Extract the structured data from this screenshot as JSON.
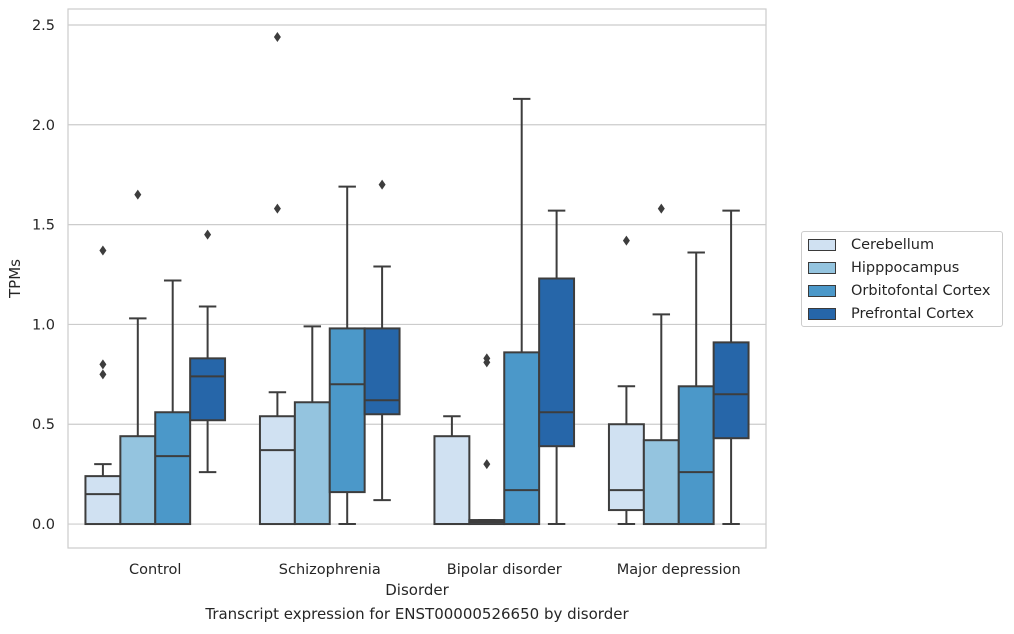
{
  "caption": "Transcript expression for ENST00000526650 by disorder",
  "chart_data": {
    "type": "box",
    "title": "",
    "xlabel": "Disorder",
    "ylabel": "TPMs",
    "ylim": [
      -0.12,
      2.58
    ],
    "yticks": [
      0.0,
      0.5,
      1.0,
      1.5,
      2.0,
      2.5
    ],
    "ytick_labels": [
      "0.0",
      "0.5",
      "1.0",
      "1.5",
      "2.0",
      "2.5"
    ],
    "grid": "horizontal",
    "legend_position": "right",
    "categories": [
      "Control",
      "Schizophrenia",
      "Bipolar disorder",
      "Major depression"
    ],
    "series": [
      {
        "name": "Cerebellum",
        "color": "#d0e1f2",
        "boxes": [
          {
            "min": 0.0,
            "q1": 0.0,
            "median": 0.15,
            "q3": 0.24,
            "max": 0.3,
            "outliers": [
              0.75,
              0.8,
              1.37
            ]
          },
          {
            "min": 0.0,
            "q1": 0.0,
            "median": 0.37,
            "q3": 0.54,
            "max": 0.66,
            "outliers": [
              1.58,
              2.44
            ]
          },
          {
            "min": 0.0,
            "q1": 0.0,
            "median": 0.0,
            "q3": 0.44,
            "max": 0.54,
            "outliers": []
          },
          {
            "min": 0.0,
            "q1": 0.07,
            "median": 0.17,
            "q3": 0.5,
            "max": 0.69,
            "outliers": [
              1.42
            ]
          }
        ]
      },
      {
        "name": "Hipppocampus",
        "color": "#94c4df",
        "boxes": [
          {
            "min": 0.0,
            "q1": 0.0,
            "median": 0.0,
            "q3": 0.44,
            "max": 1.03,
            "outliers": [
              1.65
            ]
          },
          {
            "min": 0.0,
            "q1": 0.0,
            "median": 0.0,
            "q3": 0.61,
            "max": 0.99,
            "outliers": []
          },
          {
            "min": 0.0,
            "q1": 0.0,
            "median": 0.01,
            "q3": 0.02,
            "max": 0.02,
            "outliers": [
              0.3,
              0.81,
              0.83
            ]
          },
          {
            "min": 0.0,
            "q1": 0.0,
            "median": 0.0,
            "q3": 0.42,
            "max": 1.05,
            "outliers": [
              1.58
            ]
          }
        ]
      },
      {
        "name": "Orbitofontal Cortex",
        "color": "#4b98c9",
        "boxes": [
          {
            "min": 0.0,
            "q1": 0.0,
            "median": 0.34,
            "q3": 0.56,
            "max": 1.22,
            "outliers": []
          },
          {
            "min": 0.0,
            "q1": 0.16,
            "median": 0.7,
            "q3": 0.98,
            "max": 1.69,
            "outliers": []
          },
          {
            "min": 0.0,
            "q1": 0.0,
            "median": 0.17,
            "q3": 0.86,
            "max": 2.13,
            "outliers": []
          },
          {
            "min": 0.0,
            "q1": 0.0,
            "median": 0.26,
            "q3": 0.69,
            "max": 1.36,
            "outliers": []
          }
        ]
      },
      {
        "name": "Prefrontal Cortex",
        "color": "#2666a9",
        "boxes": [
          {
            "min": 0.26,
            "q1": 0.52,
            "median": 0.74,
            "q3": 0.83,
            "max": 1.09,
            "outliers": [
              1.45
            ]
          },
          {
            "min": 0.12,
            "q1": 0.55,
            "median": 0.62,
            "q3": 0.98,
            "max": 1.29,
            "outliers": [
              1.7
            ]
          },
          {
            "min": 0.0,
            "q1": 0.39,
            "median": 0.56,
            "q3": 1.23,
            "max": 1.57,
            "outliers": []
          },
          {
            "min": 0.0,
            "q1": 0.43,
            "median": 0.65,
            "q3": 0.91,
            "max": 1.57,
            "outliers": []
          }
        ]
      }
    ]
  }
}
